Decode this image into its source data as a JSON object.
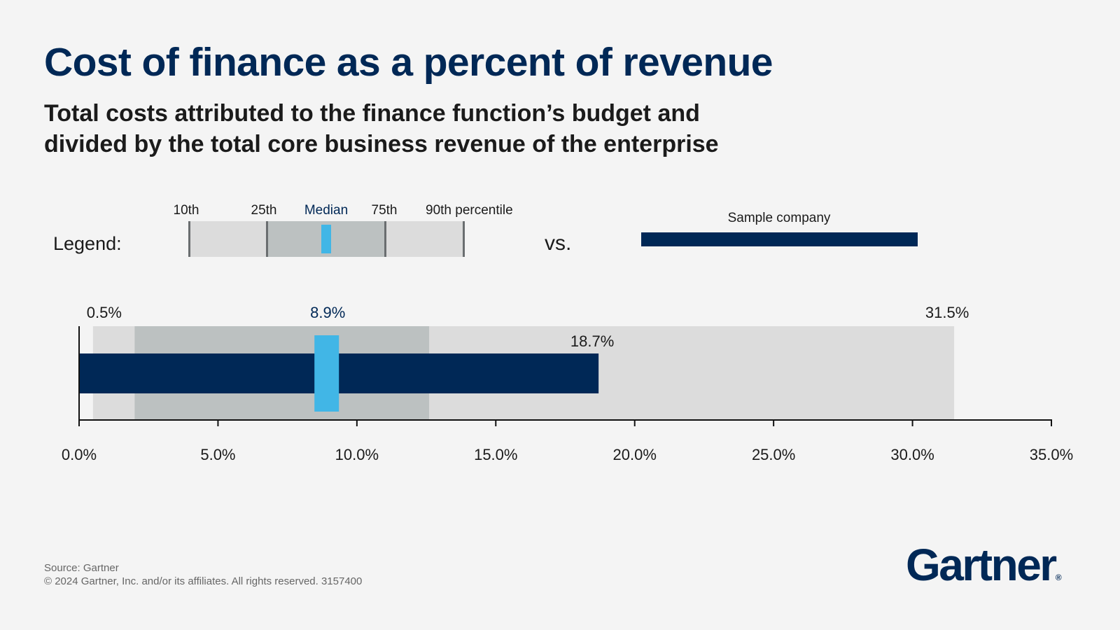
{
  "header": {
    "title": "Cost of finance as a percent of revenue",
    "subtitle_line1": "Total costs attributed to the finance function’s budget and",
    "subtitle_line2": "divided by the total core business revenue of the enterprise"
  },
  "legend": {
    "label": "Legend:",
    "p10": "10th",
    "p25": "25th",
    "median": "Median",
    "p75": "75th",
    "p90": "90th percentile",
    "vs": "vs.",
    "sample": "Sample company"
  },
  "chart_data": {
    "type": "bar",
    "subtype": "bullet",
    "percentiles": {
      "p10": 0.5,
      "p25": 2.0,
      "median": 8.9,
      "p75": 12.6,
      "p90": 31.5
    },
    "sample_company": 18.7,
    "labels": {
      "p10": "0.5%",
      "median": "8.9%",
      "p90": "31.5%",
      "sample": "18.7%"
    },
    "x_ticks": [
      0,
      5,
      10,
      15,
      20,
      25,
      30,
      35
    ],
    "x_tick_labels": [
      "0.0%",
      "5.0%",
      "10.0%",
      "15.0%",
      "20.0%",
      "25.0%",
      "30.0%",
      "35.0%"
    ],
    "xlim": [
      0,
      35
    ],
    "grid": false,
    "colors": {
      "outer_range": "#dcdcdc",
      "inner_range": "#bcc1c1",
      "median_marker": "#41b6e6",
      "sample_bar": "#002856",
      "axis": "#111111",
      "median_label": "#002856"
    }
  },
  "footer": {
    "source": "Source: Gartner",
    "copyright": "© 2024 Gartner, Inc. and/or its affiliates. All rights reserved. 3157400"
  },
  "brand": {
    "logo_text": "Gartner",
    "registered_mark": "®",
    "color": "#002856"
  }
}
